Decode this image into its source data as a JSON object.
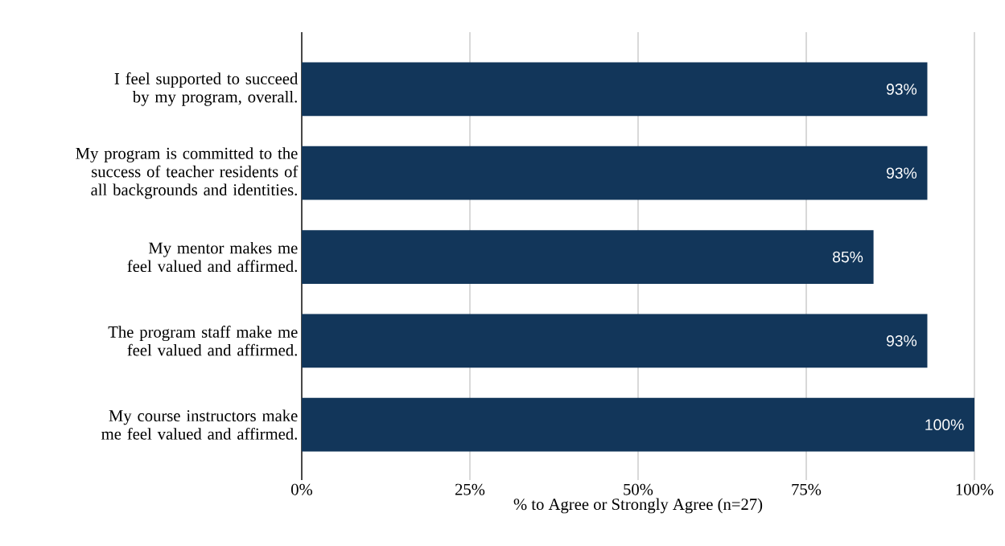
{
  "chart_data": {
    "type": "bar",
    "orientation": "horizontal",
    "categories": [
      "I feel supported to succeed by my program, overall.",
      "My program is committed to the success of teacher residents of all backgrounds and identities.",
      "My mentor makes me feel valued and affirmed.",
      "The program staff make me feel valued and affirmed.",
      "My course instructors make me feel valued and affirmed."
    ],
    "values": [
      93,
      93,
      85,
      93,
      100
    ],
    "value_labels": [
      "93%",
      "93%",
      "85%",
      "93%",
      "100%"
    ],
    "color": "#12365a",
    "xlim": [
      0,
      100
    ],
    "xticks": [
      {
        "value": 0,
        "label": "0%"
      },
      {
        "value": 25,
        "label": "25%"
      },
      {
        "value": 50,
        "label": "50%"
      },
      {
        "value": 75,
        "label": "75%"
      },
      {
        "value": 100,
        "label": "100%"
      }
    ],
    "xlabel": "% to Agree or Strongly Agree (n=27)",
    "grid": "x"
  }
}
